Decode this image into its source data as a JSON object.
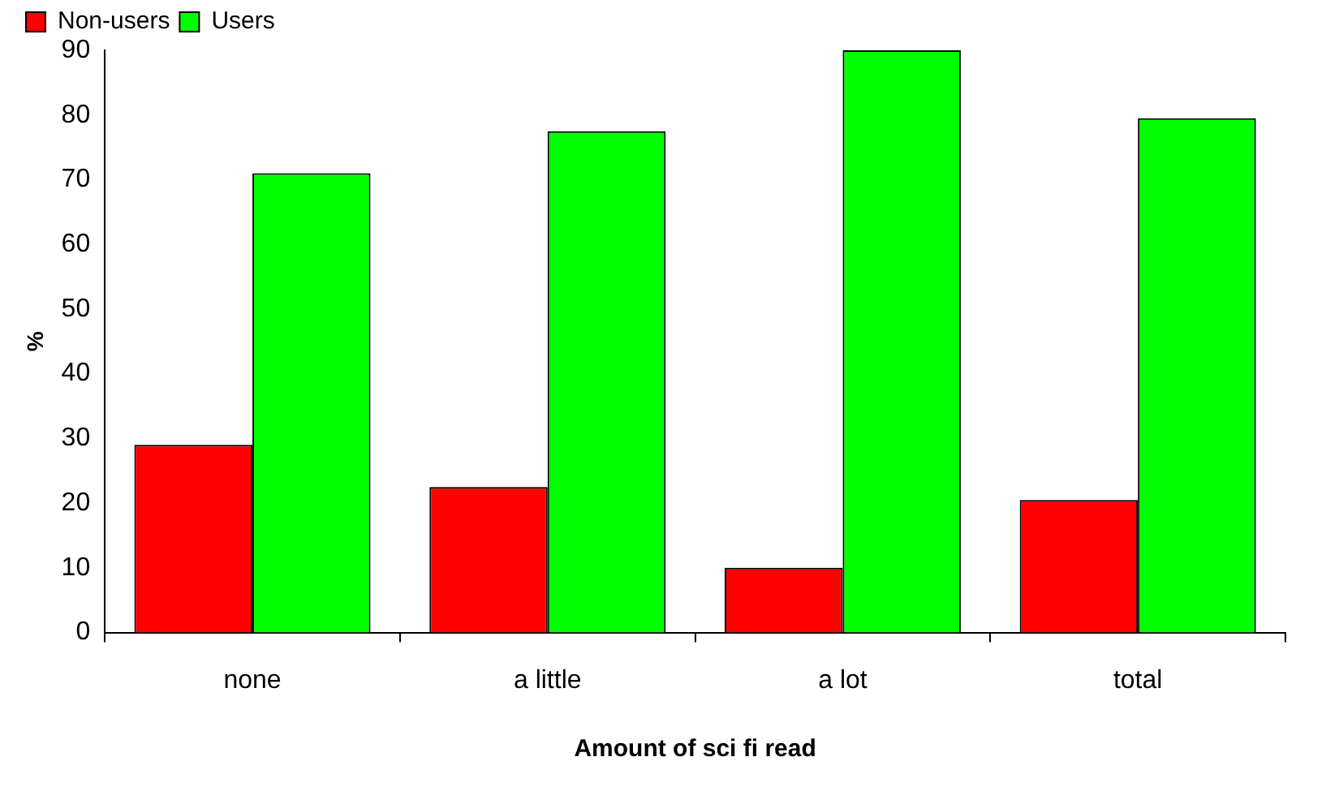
{
  "chart_data": {
    "type": "bar",
    "xlabel": "Amount of sci fi read",
    "ylabel": "%",
    "categories": [
      "none",
      "a little",
      "a lot",
      "total"
    ],
    "series": [
      {
        "name": "Non-users",
        "color": "#ff0000",
        "values": [
          29,
          22.5,
          10,
          20.5
        ]
      },
      {
        "name": "Users",
        "color": "#00ff00",
        "values": [
          71,
          77.5,
          90,
          79.5
        ]
      }
    ],
    "ylim": [
      0,
      90
    ],
    "yticks": [
      0,
      10,
      20,
      30,
      40,
      50,
      60,
      70,
      80,
      90
    ],
    "grid": false,
    "legend": "top left"
  }
}
